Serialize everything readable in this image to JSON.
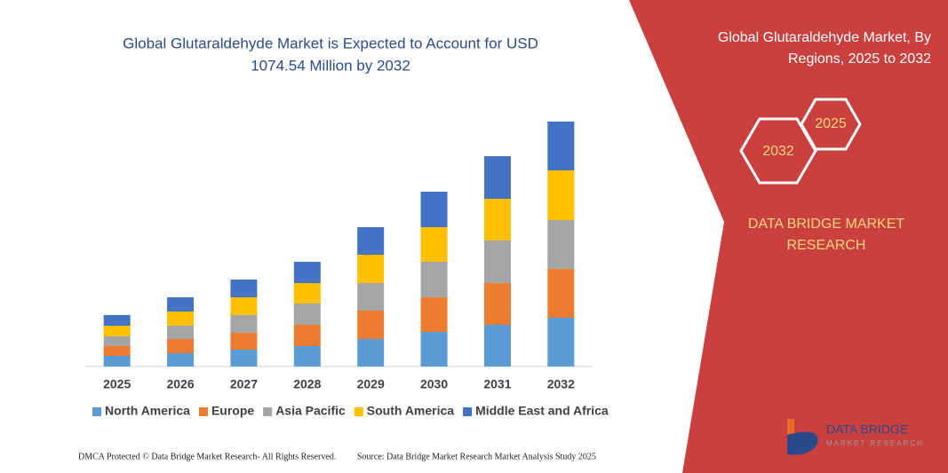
{
  "chart_data": {
    "type": "stacked_bar",
    "title": [
      "Global Glutaraldehyde Market is Expected to Account for USD",
      "1074.54 Million by 2032"
    ],
    "categories": [
      "2025",
      "2026",
      "2027",
      "2028",
      "2029",
      "2030",
      "2031",
      "2032"
    ],
    "series": [
      {
        "name": "North America",
        "color": "#5b9bd5",
        "values": [
          12,
          15,
          19,
          23,
          31,
          39,
          47,
          55
        ]
      },
      {
        "name": "Europe",
        "color": "#ed7d31",
        "values": [
          11,
          16,
          19,
          24,
          32,
          39,
          47,
          55
        ]
      },
      {
        "name": "Asia Pacific",
        "color": "#a5a5a5",
        "values": [
          11,
          15,
          20,
          24,
          31,
          40,
          48,
          55
        ]
      },
      {
        "name": "South America",
        "color": "#ffc000",
        "values": [
          12,
          16,
          20,
          23,
          32,
          39,
          47,
          56
        ]
      },
      {
        "name": "Middle East and Africa",
        "color": "#4472c4",
        "values": [
          12,
          16,
          20,
          24,
          31,
          40,
          48,
          55
        ]
      }
    ],
    "ylim": [
      0,
      276
    ],
    "grid": false,
    "legend": "bottom"
  },
  "panel": {
    "title": [
      "Global Glutaraldehyde Market, By",
      "Regions, 2025 to 2032"
    ],
    "hex_small": "2025",
    "hex_large": "2032",
    "brand": [
      "DATA BRIDGE MARKET",
      "RESEARCH"
    ]
  },
  "logo": {
    "name": "DATA BRIDGE",
    "tagline": "MARKET RESEARCH"
  },
  "footer": {
    "left": "DMCA Protected © Data Bridge Market Research- All Rights Reserved.",
    "right": "Source: Data Bridge Market Research  Market Analysis Study 2025"
  }
}
